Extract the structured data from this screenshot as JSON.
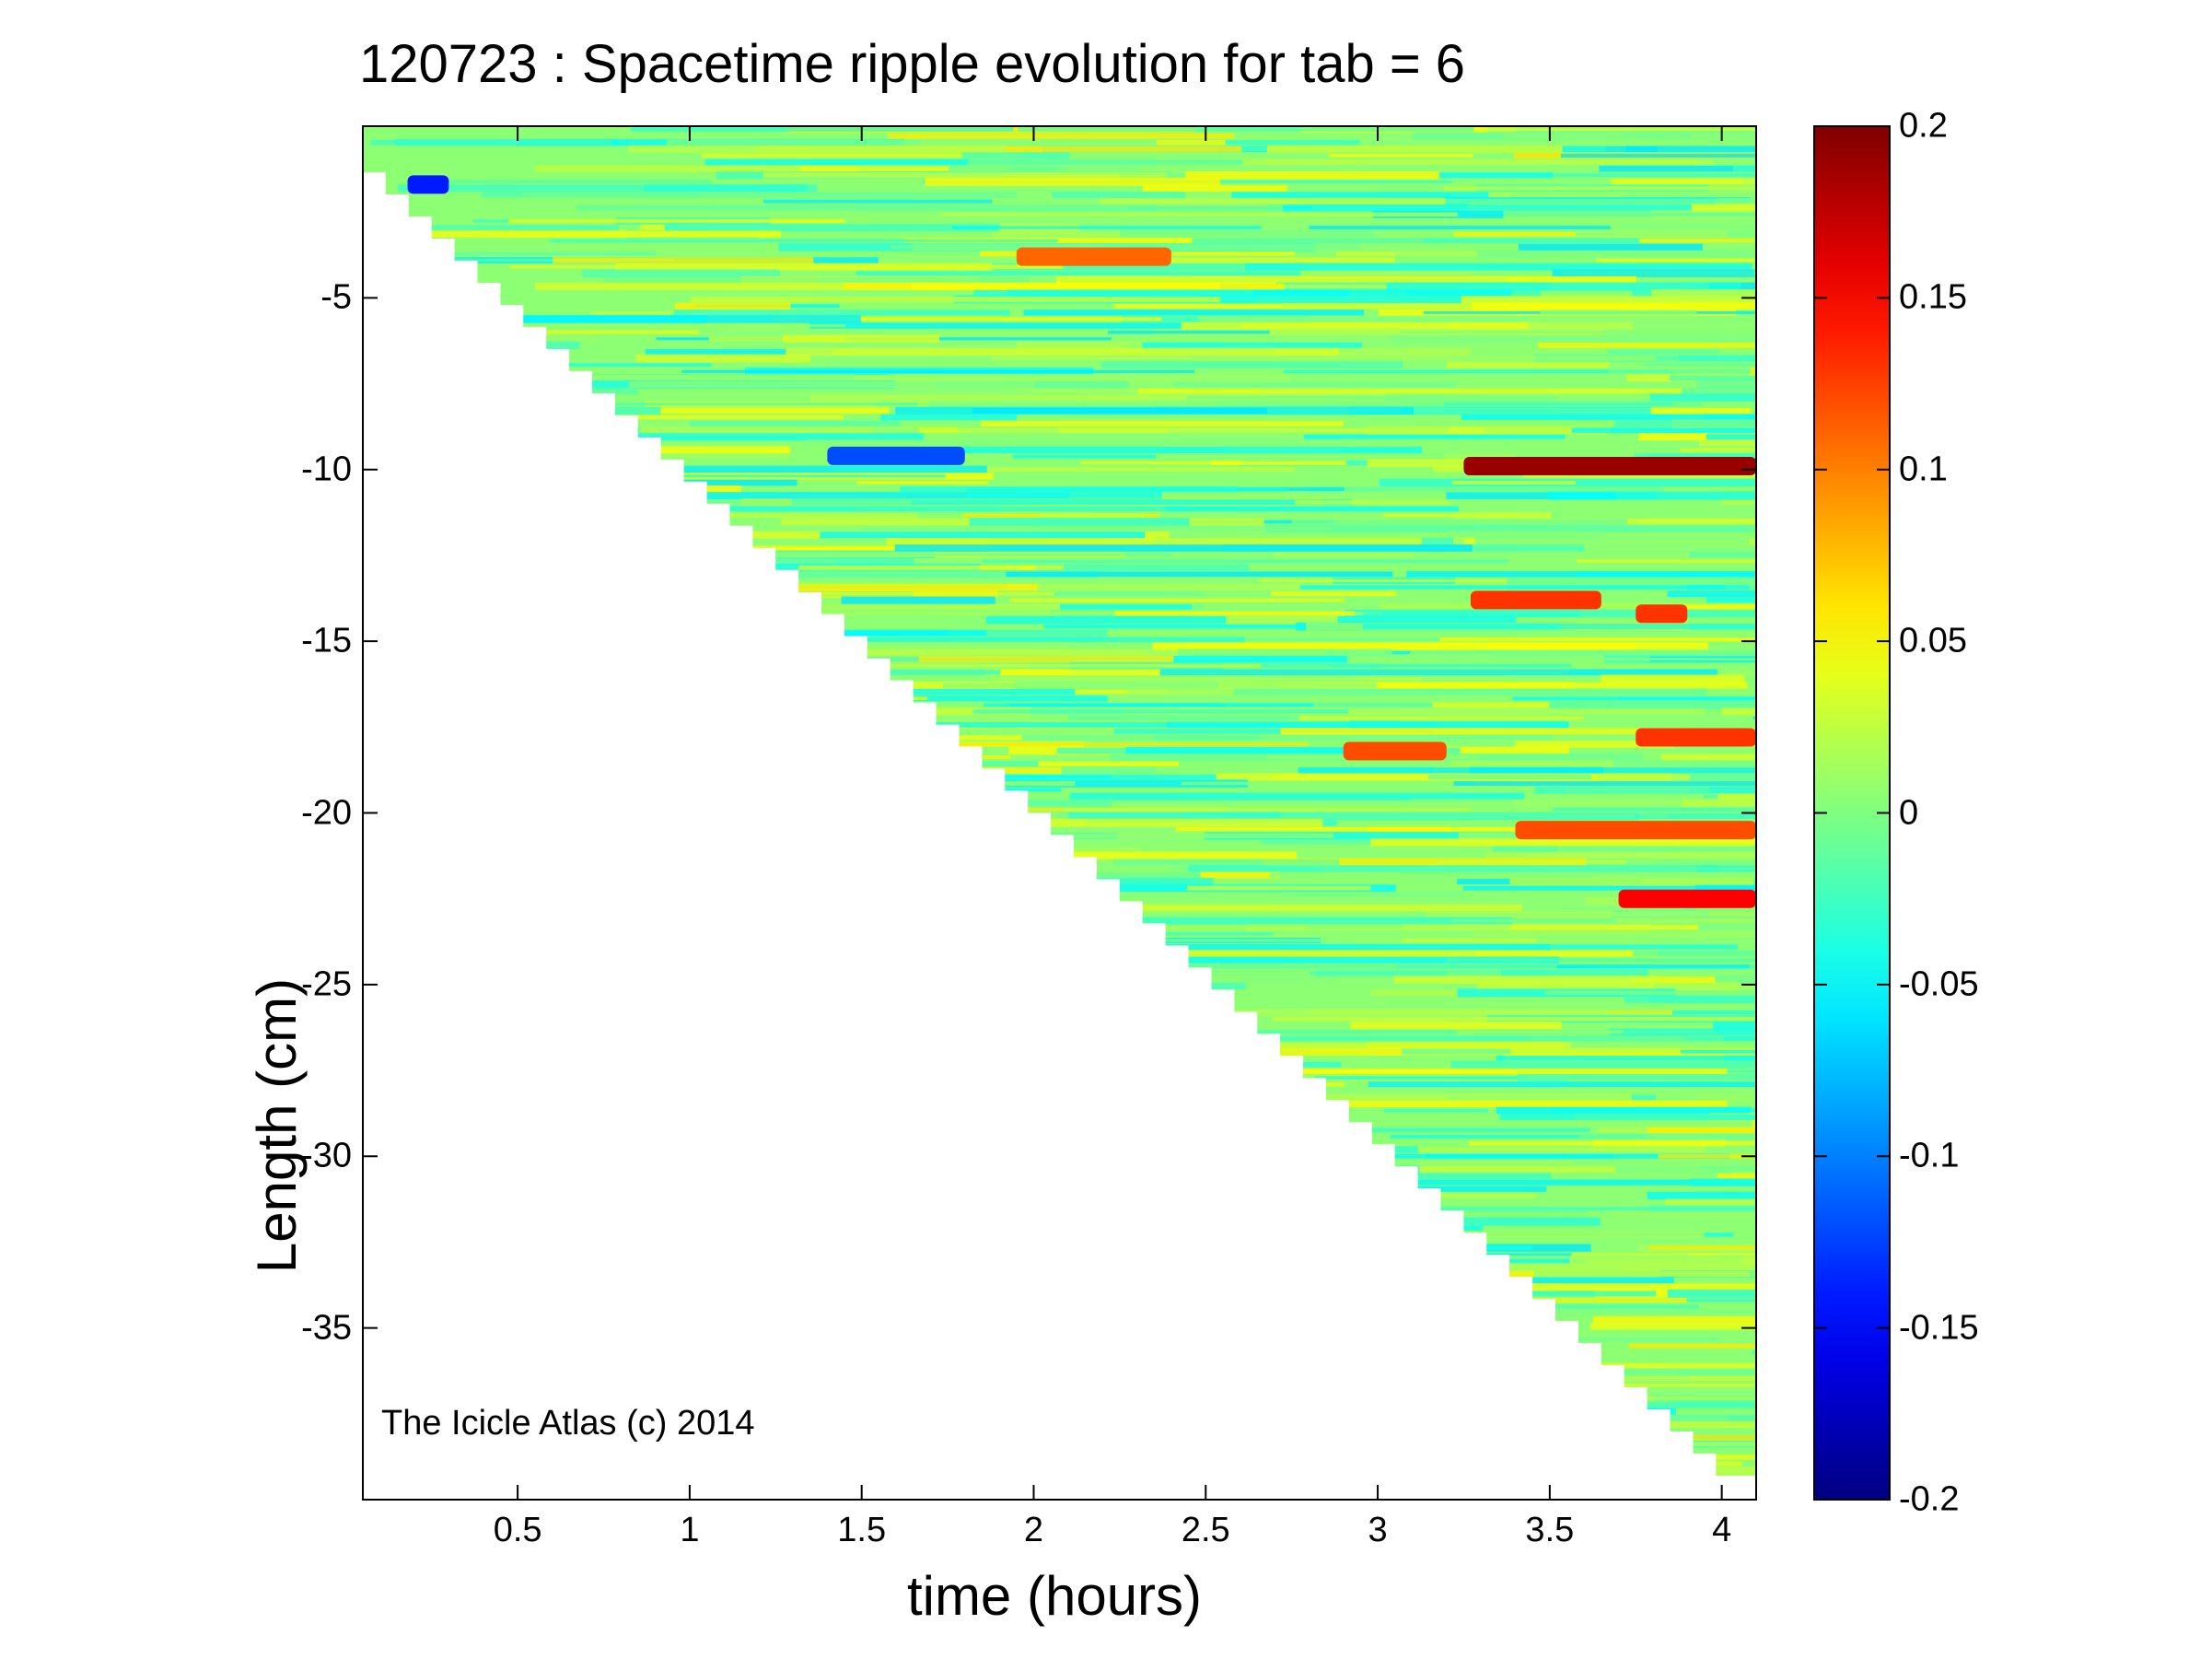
{
  "chart_data": {
    "type": "heatmap",
    "title": "120723 : Spacetime ripple evolution for tab = 6",
    "xlabel": "time (hours)",
    "ylabel": "Length (cm)",
    "xlim": [
      0.05,
      4.1
    ],
    "ylim": [
      -40,
      0
    ],
    "x_ticks": [
      0.5,
      1,
      1.5,
      2,
      2.5,
      3,
      3.5,
      4
    ],
    "x_tick_labels": [
      "0.5",
      "1",
      "1.5",
      "2",
      "2.5",
      "3",
      "3.5",
      "4"
    ],
    "y_ticks": [
      -5,
      -10,
      -15,
      -20,
      -25,
      -30,
      -35
    ],
    "y_tick_labels": [
      "-5",
      "-10",
      "-15",
      "-20",
      "-25",
      "-30",
      "-35"
    ],
    "colorbar": {
      "colormap": "jet",
      "clim": [
        -0.2,
        0.2
      ],
      "ticks": [
        0.2,
        0.15,
        0.1,
        0.05,
        0,
        -0.05,
        -0.1,
        -0.15,
        -0.2
      ],
      "tick_labels": [
        "0.2",
        "0.15",
        "0.1",
        "0.05",
        "0",
        "-0.05",
        "-0.1",
        "-0.15",
        "-0.2"
      ]
    },
    "data_region_boundary": [
      {
        "time": 0.05,
        "length": -0.7
      },
      {
        "time": 4.05,
        "length": -39.3
      }
    ],
    "highlighted_features": [
      {
        "time_start": 3.25,
        "time_end": 4.1,
        "length": -9.9,
        "value": 0.19
      },
      {
        "time_start": 3.27,
        "time_end": 3.65,
        "length": -13.8,
        "value": 0.13
      },
      {
        "time_start": 3.7,
        "time_end": 4.1,
        "length": -22.5,
        "value": 0.15
      },
      {
        "time_start": 3.4,
        "time_end": 4.1,
        "length": -20.5,
        "value": 0.12
      },
      {
        "time_start": 3.75,
        "time_end": 4.1,
        "length": -17.8,
        "value": 0.13
      },
      {
        "time_start": 2.9,
        "time_end": 3.2,
        "length": -18.2,
        "value": 0.12
      },
      {
        "time_start": 1.95,
        "time_end": 2.4,
        "length": -3.8,
        "value": 0.11
      },
      {
        "time_start": 3.75,
        "time_end": 3.9,
        "length": -14.2,
        "value": 0.13
      },
      {
        "time_start": 1.4,
        "time_end": 1.8,
        "length": -9.6,
        "value": -0.12
      },
      {
        "time_start": 0.18,
        "time_end": 0.3,
        "length": -1.7,
        "value": -0.14
      }
    ]
  },
  "annotation": "The Icicle Atlas (c) 2014"
}
